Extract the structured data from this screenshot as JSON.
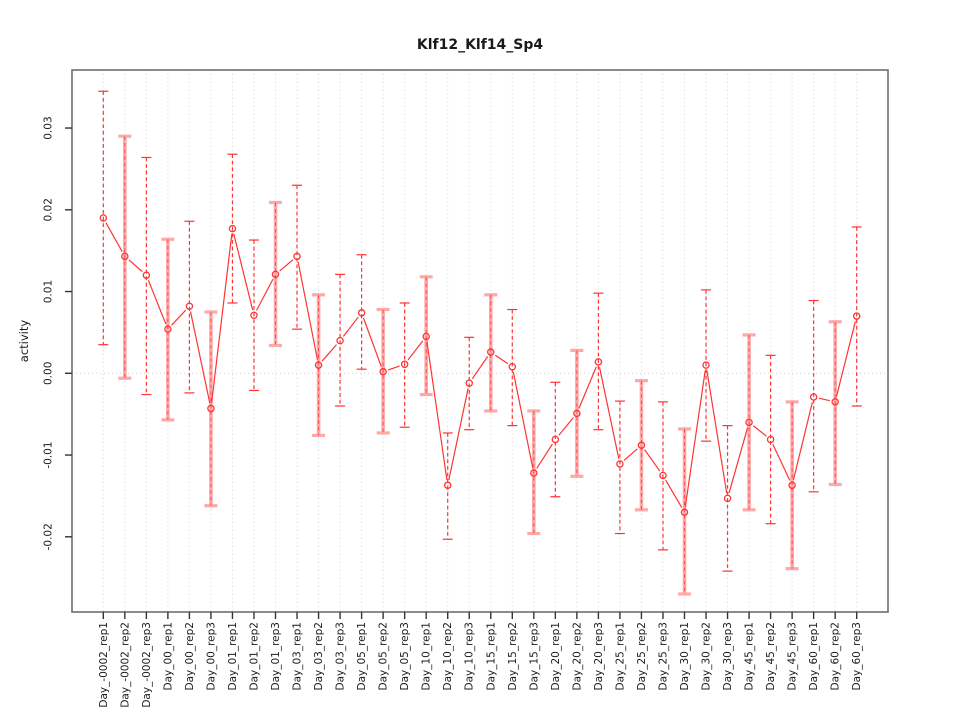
{
  "chart_data": {
    "type": "line",
    "title": "Klf12_Klf14_Sp4",
    "xlabel": "",
    "ylabel": "activity",
    "ylim": [
      -0.0292,
      0.0371
    ],
    "yticks": [
      0.03,
      0.02,
      0.01,
      0.0,
      -0.01,
      -0.02
    ],
    "ytick_labels": [
      "0.03",
      "0.02",
      "0.01",
      "0.00",
      "-0.01",
      "-0.02"
    ],
    "grid": "dotted vertical line at every category; dotted horizontal line at y=0",
    "legend_position": "none",
    "marker": "open-circle",
    "categories": [
      "Day_-0002_rep1",
      "Day_-0002_rep2",
      "Day_-0002_rep3",
      "Day_00_rep1",
      "Day_00_rep2",
      "Day_00_rep3",
      "Day_01_rep1",
      "Day_01_rep2",
      "Day_01_rep3",
      "Day_03_rep1",
      "Day_03_rep2",
      "Day_03_rep3",
      "Day_05_rep1",
      "Day_05_rep2",
      "Day_05_rep3",
      "Day_10_rep1",
      "Day_10_rep2",
      "Day_10_rep3",
      "Day_15_rep1",
      "Day_15_rep2",
      "Day_15_rep3",
      "Day_20_rep1",
      "Day_20_rep2",
      "Day_20_rep3",
      "Day_25_rep1",
      "Day_25_rep2",
      "Day_25_rep3",
      "Day_30_rep1",
      "Day_30_rep2",
      "Day_30_rep3",
      "Day_45_rep1",
      "Day_45_rep2",
      "Day_45_rep3",
      "Day_60_rep1",
      "Day_60_rep2",
      "Day_60_rep3"
    ],
    "series": [
      {
        "name": "activity",
        "values": [
          0.019,
          0.0143,
          0.012,
          0.0054,
          0.0082,
          -0.0043,
          0.0177,
          0.0071,
          0.0121,
          0.0143,
          0.001,
          0.004,
          0.0074,
          0.0002,
          0.0011,
          0.0045,
          -0.0137,
          -0.0012,
          0.0026,
          0.0008,
          -0.0122,
          -0.0081,
          -0.0049,
          0.0014,
          -0.0111,
          -0.0088,
          -0.0125,
          -0.017,
          0.001,
          -0.0153,
          -0.006,
          -0.0081,
          -0.0137,
          -0.0029,
          -0.0035,
          0.007
        ],
        "error_low": [
          0.0035,
          -0.0006,
          -0.0026,
          -0.0057,
          -0.0024,
          -0.0162,
          0.0086,
          -0.0021,
          0.0034,
          0.0054,
          -0.0076,
          -0.004,
          0.0005,
          -0.0073,
          -0.0066,
          -0.0026,
          -0.0203,
          -0.0069,
          -0.0046,
          -0.0064,
          -0.0196,
          -0.0151,
          -0.0126,
          -0.0069,
          -0.0196,
          -0.0167,
          -0.0216,
          -0.027,
          -0.0083,
          -0.0242,
          -0.0167,
          -0.0184,
          -0.0239,
          -0.0145,
          -0.0136,
          -0.004
        ],
        "error_high": [
          0.0345,
          0.029,
          0.0264,
          0.0164,
          0.0186,
          0.0075,
          0.0268,
          0.0163,
          0.0209,
          0.023,
          0.0096,
          0.0121,
          0.0145,
          0.0078,
          0.0086,
          0.0118,
          -0.0073,
          0.0044,
          0.0096,
          0.0078,
          -0.0046,
          -0.0011,
          0.0028,
          0.0098,
          -0.0034,
          -0.0009,
          -0.0035,
          -0.0068,
          0.0102,
          -0.0064,
          0.0047,
          0.0022,
          -0.0035,
          0.0089,
          0.0063,
          0.0179
        ],
        "thick_bar": [
          false,
          true,
          false,
          true,
          false,
          true,
          false,
          false,
          true,
          false,
          true,
          false,
          false,
          true,
          false,
          true,
          false,
          false,
          true,
          false,
          true,
          false,
          true,
          false,
          false,
          true,
          false,
          true,
          false,
          false,
          true,
          false,
          true,
          false,
          true,
          false
        ]
      }
    ],
    "colors": {
      "series": "#ff3333",
      "thick_error_bar": "#ffa8a8",
      "gridline": "#d6d6d6",
      "zero_line": "#dcc9c9",
      "frame": "#6e6e6e",
      "text": "#1a1a1a"
    }
  }
}
